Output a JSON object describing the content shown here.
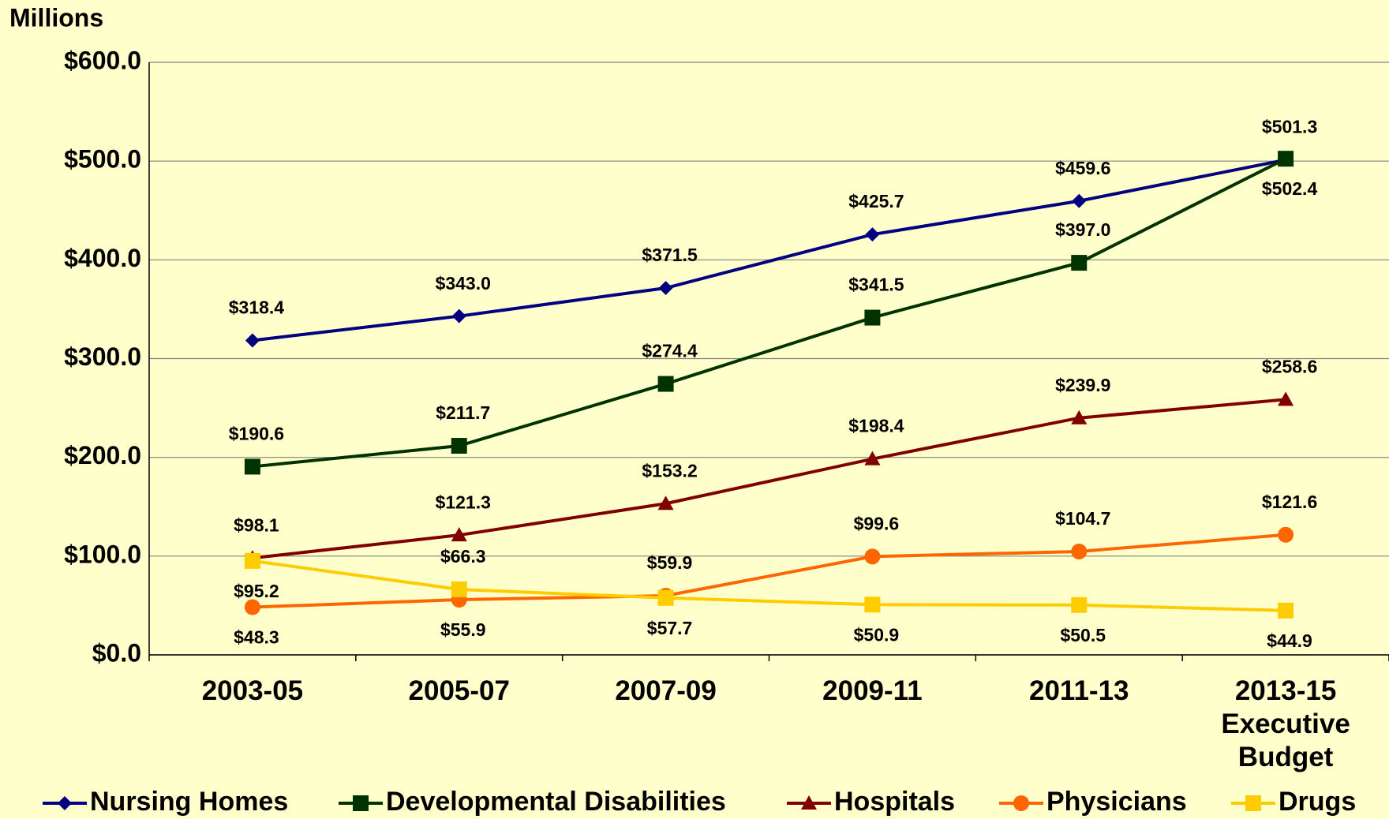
{
  "chart_data": {
    "type": "line",
    "y_label": "Millions",
    "categories": [
      "2003-05",
      "2005-07",
      "2007-09",
      "2009-11",
      "2011-13",
      "2013-15 Executive Budget"
    ],
    "series": [
      {
        "name": "Nursing Homes",
        "color": "#000080",
        "marker": "diamond",
        "values": [
          318.4,
          343.0,
          371.5,
          425.7,
          459.6,
          501.3
        ],
        "value_labels": [
          "$318.4",
          "$343.0",
          "$371.5",
          "$425.7",
          "$459.6",
          "$501.3"
        ]
      },
      {
        "name": "Developmental Disabilities",
        "color": "#003300",
        "marker": "square",
        "values": [
          190.6,
          211.7,
          274.4,
          341.5,
          397.0,
          502.4
        ],
        "value_labels": [
          "$190.6",
          "$211.7",
          "$274.4",
          "$341.5",
          "$397.0",
          "$502.4"
        ]
      },
      {
        "name": "Hospitals",
        "color": "#800000",
        "marker": "triangle",
        "values": [
          98.1,
          121.3,
          153.2,
          198.4,
          239.9,
          258.6
        ],
        "value_labels": [
          "$98.1",
          "$121.3",
          "$153.2",
          "$198.4",
          "$239.9",
          "$258.6"
        ]
      },
      {
        "name": "Physicians",
        "color": "#FF6600",
        "marker": "circle",
        "values": [
          48.3,
          55.9,
          59.9,
          99.6,
          104.7,
          121.6
        ],
        "value_labels": [
          "$48.3",
          "$55.9",
          "$59.9",
          "$99.6",
          "$104.7",
          "$121.6"
        ]
      },
      {
        "name": "Drugs",
        "color": "#FFCC00",
        "marker": "square",
        "values": [
          95.2,
          66.3,
          57.7,
          50.9,
          50.5,
          44.9
        ],
        "value_labels": [
          "$95.2",
          "$66.3",
          "$57.7",
          "$50.9",
          "$50.5",
          "$44.9"
        ]
      }
    ],
    "ylim": [
      0,
      600
    ],
    "yticks": [
      {
        "value": 0,
        "label": "$0.0"
      },
      {
        "value": 100,
        "label": "$100.0"
      },
      {
        "value": 200,
        "label": "$200.0"
      },
      {
        "value": 300,
        "label": "$300.0"
      },
      {
        "value": 400,
        "label": "$400.0"
      },
      {
        "value": 500,
        "label": "$500.0"
      },
      {
        "value": 600,
        "label": "$600.0"
      }
    ],
    "grid": true,
    "legend": "bottom"
  }
}
